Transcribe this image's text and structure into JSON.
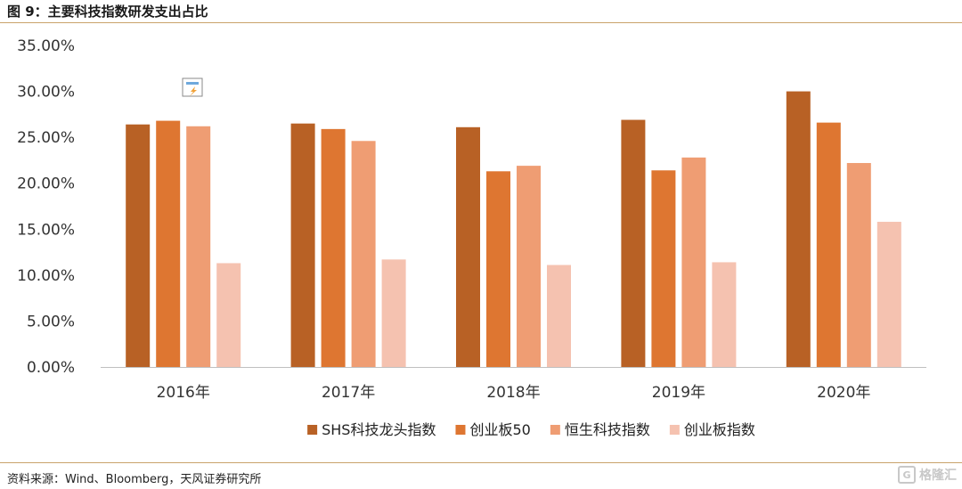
{
  "figure": {
    "title": "图 9：主要科技指数研发支出占比",
    "source": "资料来源：Wind、Bloomberg，天风证券研究所",
    "watermark": "格隆汇",
    "watermark_icon": "watermark-logo-icon"
  },
  "colors": {
    "rule": "#c9a36b",
    "axis": "#bfbfbf"
  },
  "chart_data": {
    "type": "bar",
    "title": "",
    "xlabel": "",
    "ylabel": "",
    "categories": [
      "2016年",
      "2017年",
      "2018年",
      "2019年",
      "2020年"
    ],
    "ylim": [
      0,
      35
    ],
    "yticks": [
      "0.00%",
      "5.00%",
      "10.00%",
      "15.00%",
      "20.00%",
      "25.00%",
      "30.00%",
      "35.00%"
    ],
    "grid": false,
    "legend_position": "bottom",
    "series": [
      {
        "name": "SHS科技龙头指数",
        "color": "#b86125",
        "values": [
          26.4,
          26.5,
          26.1,
          26.9,
          30.0
        ]
      },
      {
        "name": "创业板50",
        "color": "#de7631",
        "values": [
          26.8,
          25.9,
          21.3,
          21.4,
          26.6
        ]
      },
      {
        "name": "恒生科技指数",
        "color": "#ef9d73",
        "values": [
          26.2,
          24.6,
          21.9,
          22.8,
          22.2
        ]
      },
      {
        "name": "创业板指数",
        "color": "#f5c2b0",
        "values": [
          11.3,
          11.7,
          11.1,
          11.4,
          15.8
        ]
      }
    ],
    "annotations": [
      {
        "type": "icon",
        "name": "edit-chart-icon"
      }
    ]
  }
}
